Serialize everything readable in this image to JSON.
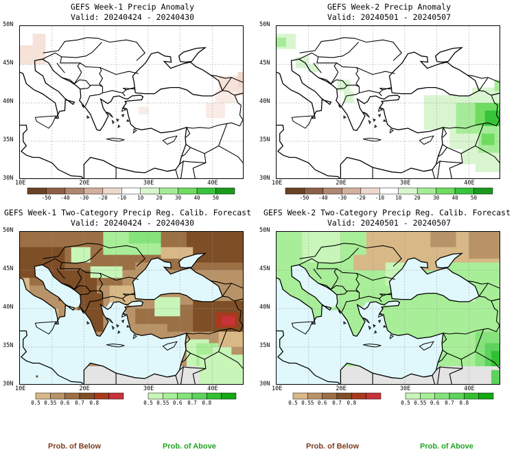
{
  "panels": [
    {
      "id": "p1",
      "title_line1": "GEFS Week-1 Precip Anomaly",
      "title_line2": "Valid: 20240424 - 20240430"
    },
    {
      "id": "p2",
      "title_line1": "GEFS Week-2 Precip Anomaly",
      "title_line2": "Valid: 20240501 - 20240507"
    },
    {
      "id": "p3",
      "title_line1": "GEFS Week-1 Two-Category Precip Reg. Calib. Forecast",
      "title_line2": "Valid: 20240424 - 20240430"
    },
    {
      "id": "p4",
      "title_line1": "GEFS Week-2 Two-Category Precip Reg. Calib. Forecast",
      "title_line2": "Valid: 20240501 - 20240507"
    }
  ],
  "axes": {
    "lat_labels": [
      "50N",
      "45N",
      "40N",
      "35N",
      "30N"
    ],
    "lon_labels": [
      "10E",
      "20E",
      "30E",
      "40E"
    ]
  },
  "anomaly_colorbar": {
    "labels": [
      "-50",
      "-40",
      "-30",
      "-20",
      "-10",
      "10",
      "20",
      "30",
      "40",
      "50"
    ],
    "colors": [
      "#6b4226",
      "#8c6047",
      "#b08672",
      "#d2b0a0",
      "#ecd8cc",
      "#ffffff",
      "#d8f5d0",
      "#a6ec98",
      "#6fdc60",
      "#38c43a",
      "#1a9a1c"
    ]
  },
  "prob_below_colorbar": {
    "labels": [
      "0.5",
      "0.55",
      "0.6",
      "0.7",
      "0.8"
    ],
    "colors": [
      "#d8b887",
      "#b99368",
      "#9b7045",
      "#7e4e26",
      "#a83a1e",
      "#c8323a"
    ]
  },
  "prob_above_colorbar": {
    "labels": [
      "0.5",
      "0.55",
      "0.6",
      "0.7",
      "0.8"
    ],
    "colors": [
      "#c8f5b8",
      "#a8ee98",
      "#86e27a",
      "#5cd45c",
      "#32c032",
      "#14a814"
    ]
  },
  "legend": {
    "below_label": "Prob. of Below",
    "above_label": "Prob. of Above",
    "below_color": "#7a3b1c",
    "above_color": "#22a322"
  },
  "map_colors": {
    "sea_light_blue": "#e0f8fc",
    "missing_gray": "#e4e4e4",
    "land_default": "#ffffff"
  }
}
